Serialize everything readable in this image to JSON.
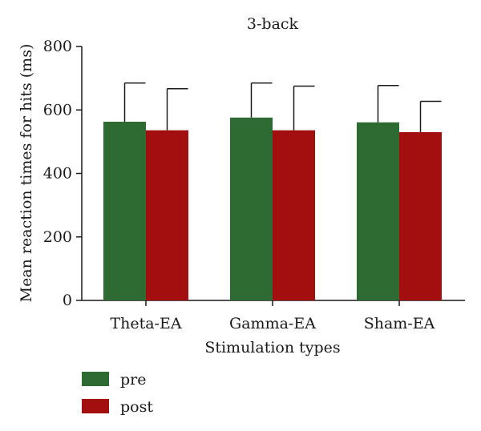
{
  "chart_data": {
    "type": "bar",
    "title": "3-back",
    "xlabel": "Stimulation types",
    "ylabel": "Mean reaction times for hits (ms)",
    "ylim": [
      0,
      800
    ],
    "yticks": [
      0,
      200,
      400,
      600,
      800
    ],
    "categories": [
      "Theta-EA",
      "Gamma-EA",
      "Sham-EA"
    ],
    "series": [
      {
        "name": "pre",
        "color": "#2e6b33",
        "values": [
          563,
          576,
          561
        ],
        "error": [
          122,
          109,
          116
        ]
      },
      {
        "name": "post",
        "color": "#a30f0f",
        "values": [
          536,
          536,
          530
        ],
        "error": [
          131,
          139,
          97
        ]
      }
    ],
    "error_bars": "upper",
    "grid": false,
    "legend_position": "bottom-left"
  }
}
